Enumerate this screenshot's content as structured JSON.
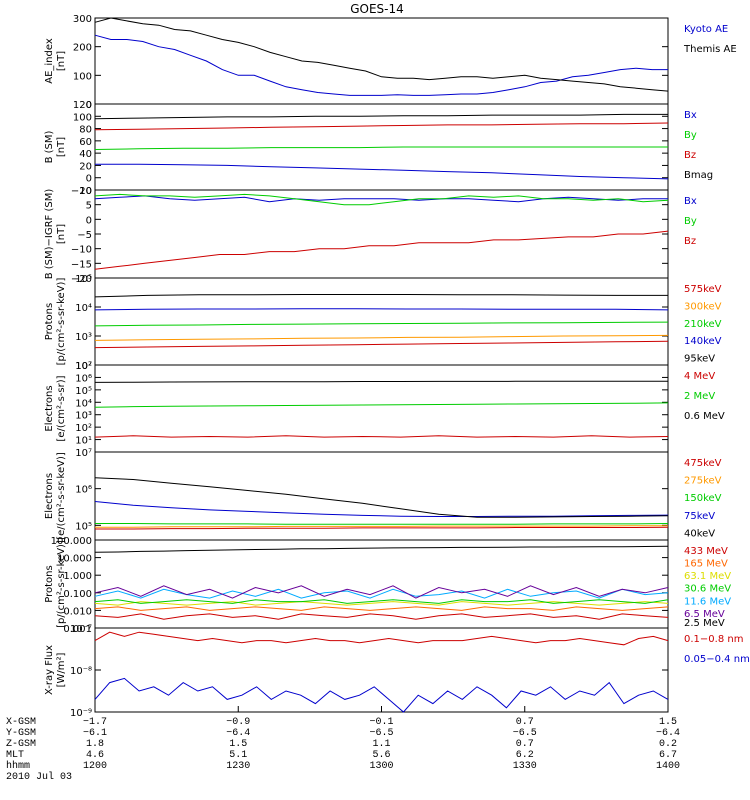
{
  "title": "GOES-14",
  "chart_data": [
    {
      "type": "line",
      "ylabel": "AE_index\n[nT]",
      "ylim": [
        0,
        300
      ],
      "yticks": [
        {
          "v": 0,
          "t": "0"
        },
        {
          "v": 100,
          "t": "100"
        },
        {
          "v": 200,
          "t": "200"
        },
        {
          "v": 300,
          "t": "300"
        }
      ],
      "series": [
        {
          "name": "Kyoto AE",
          "color": "#0000cc",
          "values": [
            240,
            225,
            225,
            218,
            200,
            190,
            170,
            150,
            120,
            100,
            100,
            80,
            60,
            50,
            40,
            35,
            30,
            30,
            30,
            32,
            30,
            30,
            32,
            35,
            35,
            40,
            50,
            60,
            75,
            80,
            95,
            100,
            110,
            120,
            125,
            120,
            120
          ]
        },
        {
          "name": "Themis AE",
          "color": "#000000",
          "values": [
            285,
            300,
            290,
            280,
            275,
            260,
            255,
            240,
            225,
            215,
            200,
            180,
            165,
            150,
            145,
            135,
            125,
            115,
            95,
            90,
            90,
            85,
            90,
            95,
            95,
            90,
            95,
            100,
            90,
            85,
            80,
            75,
            70,
            60,
            55,
            50,
            45
          ]
        }
      ]
    },
    {
      "type": "line",
      "ylabel": "B (SM)\n[nT]",
      "ylim": [
        -20,
        120
      ],
      "yticks": [
        {
          "v": -20,
          "t": "−20"
        },
        {
          "v": 0,
          "t": "0"
        },
        {
          "v": 20,
          "t": "20"
        },
        {
          "v": 40,
          "t": "40"
        },
        {
          "v": 60,
          "t": "60"
        },
        {
          "v": 80,
          "t": "80"
        },
        {
          "v": 100,
          "t": "100"
        },
        {
          "v": 120,
          "t": "120"
        }
      ],
      "series": [
        {
          "name": "Bx",
          "color": "#0000cc",
          "values": [
            22,
            22,
            21,
            20,
            18,
            16,
            14,
            12,
            10,
            8,
            5,
            2,
            0,
            -2
          ]
        },
        {
          "name": "By",
          "color": "#00cc00",
          "values": [
            46,
            47,
            48,
            48,
            49,
            49,
            49,
            50,
            50,
            50,
            50,
            50,
            50,
            50
          ]
        },
        {
          "name": "Bz",
          "color": "#cc0000",
          "values": [
            78,
            79,
            80,
            81,
            82,
            83,
            84,
            85,
            86,
            86,
            87,
            88,
            88,
            89
          ]
        },
        {
          "name": "Bmag",
          "color": "#000000",
          "values": [
            96,
            97,
            98,
            99,
            99,
            100,
            100,
            101,
            101,
            102,
            102,
            102,
            103,
            103
          ]
        }
      ]
    },
    {
      "type": "line",
      "ylabel": "B (SM)−IGRF (SM)\n[nT]",
      "ylim": [
        -20,
        10
      ],
      "yticks": [
        {
          "v": -20,
          "t": "−20"
        },
        {
          "v": -15,
          "t": "−15"
        },
        {
          "v": -10,
          "t": "−10"
        },
        {
          "v": -5,
          "t": "−5"
        },
        {
          "v": 0,
          "t": "0"
        },
        {
          "v": 5,
          "t": "5"
        },
        {
          "v": 10,
          "t": "10"
        }
      ],
      "series": [
        {
          "name": "Bx",
          "color": "#0000cc",
          "values": [
            7,
            7.5,
            8,
            7,
            6.5,
            7,
            7.5,
            6,
            7,
            6.5,
            7,
            7,
            7,
            6.5,
            7,
            7,
            6.5,
            6,
            7,
            7.5,
            7,
            6.5,
            7,
            7
          ]
        },
        {
          "name": "By",
          "color": "#00cc00",
          "values": [
            8,
            8.5,
            8,
            8,
            7.5,
            8,
            8.5,
            8,
            7,
            6,
            5,
            5,
            6,
            7,
            7,
            8,
            7.5,
            8,
            7,
            7,
            6.5,
            7,
            6,
            6.5
          ]
        },
        {
          "name": "Bz",
          "color": "#cc0000",
          "values": [
            -17,
            -16,
            -15,
            -14,
            -13,
            -12,
            -12,
            -11,
            -11,
            -10,
            -10,
            -9,
            -9,
            -8,
            -8,
            -8,
            -7,
            -7,
            -6.5,
            -6,
            -6,
            -5,
            -5,
            -4
          ]
        }
      ]
    },
    {
      "type": "line",
      "ylabel": "Protons\n[p/(cm²-s-sr-keV)]",
      "ylim_log": [
        2,
        5
      ],
      "yticks": [
        {
          "v": 2,
          "t": "10²"
        },
        {
          "v": 3,
          "t": "10³"
        },
        {
          "v": 4,
          "t": "10⁴"
        },
        {
          "v": 5,
          "t": "10⁵"
        }
      ],
      "series": [
        {
          "name": "575keV",
          "color": "#cc0000",
          "values": [
            2.6,
            2.62,
            2.64,
            2.66,
            2.68,
            2.7,
            2.72,
            2.74,
            2.76,
            2.78,
            2.8,
            2.82
          ]
        },
        {
          "name": "300keV",
          "color": "#ff9900",
          "values": [
            2.85,
            2.87,
            2.89,
            2.9,
            2.92,
            2.93,
            2.95,
            2.96,
            2.98,
            3.0,
            3.01,
            3.02
          ]
        },
        {
          "name": "210keV",
          "color": "#00cc00",
          "values": [
            3.35,
            3.37,
            3.38,
            3.4,
            3.41,
            3.42,
            3.43,
            3.44,
            3.45,
            3.46,
            3.47,
            3.48
          ]
        },
        {
          "name": "140keV",
          "color": "#0000cc",
          "values": [
            3.9,
            3.92,
            3.93,
            3.93,
            3.94,
            3.94,
            3.93,
            3.93,
            3.92,
            3.92,
            3.92,
            3.9
          ]
        },
        {
          "name": "95keV",
          "color": "#000000",
          "values": [
            4.35,
            4.4,
            4.42,
            4.42,
            4.43,
            4.43,
            4.43,
            4.42,
            4.42,
            4.41,
            4.4,
            4.4
          ]
        }
      ]
    },
    {
      "type": "line",
      "ylabel": "Electrons\n[e/(cm²-s-sr)]",
      "ylim_log": [
        0,
        7
      ],
      "yticks": [
        {
          "v": 1,
          "t": "10¹"
        },
        {
          "v": 2,
          "t": "10²"
        },
        {
          "v": 3,
          "t": "10³"
        },
        {
          "v": 4,
          "t": "10⁴"
        },
        {
          "v": 5,
          "t": "10⁵"
        },
        {
          "v": 6,
          "t": "10⁶"
        },
        {
          "v": 7,
          "t": "10⁷"
        }
      ],
      "series": [
        {
          "name": "4 MeV",
          "color": "#cc0000",
          "values": [
            1.2,
            1.3,
            1.2,
            1.25,
            1.2,
            1.3,
            1.2,
            1.25,
            1.2,
            1.3,
            1.2,
            1.25,
            1.2,
            1.3,
            1.2,
            1.25
          ]
        },
        {
          "name": "2 MeV",
          "color": "#00cc00",
          "values": [
            3.6,
            3.65,
            3.68,
            3.7,
            3.72,
            3.74,
            3.76,
            3.78,
            3.8,
            3.82,
            3.84,
            3.86,
            3.88,
            3.9,
            3.92,
            3.95
          ]
        },
        {
          "name": "0.6 MeV",
          "color": "#000000",
          "values": [
            5.6,
            5.62,
            5.63,
            5.64,
            5.65,
            5.66,
            5.66,
            5.67,
            5.67,
            5.68,
            5.68,
            5.69,
            5.69,
            5.7,
            5.7,
            5.7
          ]
        }
      ]
    },
    {
      "type": "line",
      "ylabel": "Electrons\n[e/(cm²-s-sr-keV)]",
      "ylim_log": [
        4.6,
        7
      ],
      "yticks": [
        {
          "v": 5,
          "t": "10⁵"
        },
        {
          "v": 6,
          "t": "10⁶"
        },
        {
          "v": 7,
          "t": "10⁷"
        }
      ],
      "series": [
        {
          "name": "475keV",
          "color": "#cc0000",
          "values": [
            4.9,
            4.9,
            4.91,
            4.91,
            4.92,
            4.92,
            4.92,
            4.93,
            4.93,
            4.93,
            4.93,
            4.94,
            4.94,
            4.94,
            4.94,
            4.95
          ]
        },
        {
          "name": "275keV",
          "color": "#ff9900",
          "values": [
            4.95,
            4.95,
            4.96,
            4.96,
            4.96,
            4.97,
            4.97,
            4.97,
            4.97,
            4.98,
            4.98,
            4.98,
            4.98,
            4.98,
            4.99,
            4.99
          ]
        },
        {
          "name": "150keV",
          "color": "#00cc00",
          "values": [
            5.05,
            5.05,
            5.04,
            5.04,
            5.04,
            5.03,
            5.03,
            5.03,
            5.03,
            5.03,
            5.03,
            5.03,
            5.04,
            5.04,
            5.04,
            5.05
          ]
        },
        {
          "name": "75keV",
          "color": "#0000cc",
          "values": [
            5.65,
            5.55,
            5.48,
            5.42,
            5.38,
            5.34,
            5.3,
            5.27,
            5.25,
            5.24,
            5.24,
            5.25,
            5.25,
            5.26,
            5.27,
            5.28
          ]
        },
        {
          "name": "40keV",
          "color": "#000000",
          "values": [
            6.3,
            6.25,
            6.15,
            6.05,
            5.95,
            5.85,
            5.72,
            5.6,
            5.45,
            5.3,
            5.22,
            5.22,
            5.23,
            5.24,
            5.25,
            5.26
          ]
        }
      ]
    },
    {
      "type": "line",
      "ylabel": "Protons\n[p/(cm²-s-sr-keV)]",
      "ylim_log": [
        -3,
        2
      ],
      "yticks": [
        {
          "v": -3,
          "t": "0.001"
        },
        {
          "v": -2,
          "t": "0.010"
        },
        {
          "v": -1,
          "t": "0.100"
        },
        {
          "v": 0,
          "t": "1.000"
        },
        {
          "v": 1,
          "t": "10.000"
        },
        {
          "v": 2,
          "t": "100.000"
        }
      ],
      "series": [
        {
          "name": "433 MeV",
          "color": "#cc0000",
          "values": [
            -2.3,
            -2.4,
            -2.2,
            -2.5,
            -2.3,
            -2.2,
            -2.4,
            -2.3,
            -2.5,
            -2.2,
            -2.3,
            -2.4,
            -2.2,
            -2.3,
            -2.5,
            -2.3,
            -2.2,
            -2.4,
            -2.3,
            -2.2,
            -2.4,
            -2.3,
            -2.5,
            -2.2,
            -2.3,
            -2.4
          ]
        },
        {
          "name": "165 MeV",
          "color": "#ff6600",
          "values": [
            -1.9,
            -1.8,
            -2.0,
            -1.9,
            -1.8,
            -2.0,
            -1.9,
            -1.8,
            -1.9,
            -2.0,
            -1.8,
            -1.9,
            -2.0,
            -1.9,
            -1.8,
            -1.9,
            -2.0,
            -1.8,
            -1.9,
            -1.9,
            -2.0,
            -1.8,
            -1.9,
            -2.0,
            -1.9,
            -1.8
          ]
        },
        {
          "name": "63.1 MeV",
          "color": "#dddd00",
          "values": [
            -1.6,
            -1.7,
            -1.5,
            -1.6,
            -1.7,
            -1.6,
            -1.5,
            -1.7,
            -1.6,
            -1.5,
            -1.6,
            -1.7,
            -1.6,
            -1.5,
            -1.6,
            -1.7,
            -1.5,
            -1.6,
            -1.7,
            -1.6,
            -1.5,
            -1.6,
            -1.7,
            -1.6,
            -1.5,
            -1.6
          ]
        },
        {
          "name": "30.6 MeV",
          "color": "#00cc00",
          "values": [
            -1.5,
            -1.4,
            -1.6,
            -1.5,
            -1.4,
            -1.5,
            -1.6,
            -1.4,
            -1.5,
            -1.5,
            -1.4,
            -1.6,
            -1.5,
            -1.4,
            -1.5,
            -1.6,
            -1.4,
            -1.5,
            -1.5,
            -1.4,
            -1.6,
            -1.5,
            -1.4,
            -1.5,
            -1.6,
            -1.4
          ]
        },
        {
          "name": "11.6 MeV",
          "color": "#00aaff",
          "values": [
            -1.2,
            -0.9,
            -1.3,
            -0.8,
            -1.1,
            -1.3,
            -0.9,
            -1.2,
            -0.8,
            -1.3,
            -1.0,
            -0.9,
            -1.3,
            -0.8,
            -1.2,
            -1.1,
            -0.9,
            -1.3,
            -0.8,
            -1.2,
            -1.0,
            -0.9,
            -1.3,
            -0.8,
            -1.1,
            -1.0
          ]
        },
        {
          "name": "6.5 MeV",
          "color": "#660099",
          "values": [
            -1.0,
            -0.7,
            -1.2,
            -0.6,
            -1.1,
            -0.8,
            -1.3,
            -0.7,
            -1.0,
            -0.6,
            -1.2,
            -0.8,
            -1.1,
            -0.6,
            -1.3,
            -0.7,
            -1.0,
            -0.8,
            -1.2,
            -0.6,
            -1.1,
            -0.7,
            -1.2,
            -0.8,
            -1.0,
            -0.7
          ]
        },
        {
          "name": "2.5 MeV",
          "color": "#000000",
          "values": [
            1.3,
            1.32,
            1.35,
            1.37,
            1.4,
            1.42,
            1.44,
            1.46,
            1.48,
            1.5,
            1.5,
            1.52,
            1.54,
            1.55,
            1.56,
            1.57,
            1.58,
            1.58,
            1.59,
            1.6,
            1.6,
            1.61,
            1.62,
            1.62,
            1.63,
            1.64
          ]
        }
      ]
    },
    {
      "type": "line",
      "ylabel": "X-ray Flux\n[W/m²]",
      "ylim_log": [
        -9,
        -7
      ],
      "yticks": [
        {
          "v": -9,
          "t": "10⁻⁹"
        },
        {
          "v": -8,
          "t": "10⁻⁸"
        },
        {
          "v": -7,
          "t": "10⁻⁷"
        }
      ],
      "series": [
        {
          "name": "0.1−0.8 nm",
          "color": "#cc0000",
          "values": [
            -7.3,
            -7.1,
            -7.2,
            -7.1,
            -7.15,
            -7.2,
            -7.25,
            -7.3,
            -7.25,
            -7.3,
            -7.35,
            -7.3,
            -7.3,
            -7.35,
            -7.3,
            -7.25,
            -7.3,
            -7.3,
            -7.35,
            -7.3,
            -7.25,
            -7.3,
            -7.35,
            -7.3,
            -7.3,
            -7.3,
            -7.25,
            -7.2,
            -7.25,
            -7.3,
            -7.35,
            -7.3,
            -7.3,
            -7.25,
            -7.3,
            -7.35,
            -7.4,
            -7.25,
            -7.2,
            -7.3
          ]
        },
        {
          "name": "0.05−0.4 nm",
          "color": "#0000cc",
          "values": [
            -8.7,
            -8.3,
            -8.2,
            -8.5,
            -8.4,
            -8.6,
            -8.3,
            -8.5,
            -8.4,
            -8.7,
            -8.6,
            -8.4,
            -8.7,
            -8.5,
            -8.6,
            -8.8,
            -8.5,
            -8.7,
            -8.6,
            -8.4,
            -8.7,
            -9.0,
            -8.6,
            -8.8,
            -8.5,
            -8.7,
            -8.4,
            -8.6,
            -8.9,
            -8.5,
            -8.6,
            -8.4,
            -8.7,
            -8.5,
            -8.6,
            -8.3,
            -8.8,
            -8.6,
            -8.5,
            -8.7
          ]
        }
      ]
    }
  ],
  "x_axis": {
    "ticks": [
      "1200",
      "1230",
      "1300",
      "1330",
      "1400"
    ],
    "rows": [
      {
        "label": "X-GSM",
        "values": [
          "−1.7",
          "−0.9",
          "−0.1",
          "0.7",
          "1.5"
        ]
      },
      {
        "label": "Y-GSM",
        "values": [
          "−6.1",
          "−6.4",
          "−6.5",
          "−6.5",
          "−6.4"
        ]
      },
      {
        "label": "Z-GSM",
        "values": [
          "1.8",
          "1.5",
          "1.1",
          "0.7",
          "0.2"
        ]
      },
      {
        "label": "MLT",
        "values": [
          "4.6",
          "5.1",
          "5.6",
          "6.2",
          "6.7"
        ]
      },
      {
        "label": "hhmm",
        "values": [
          "1200",
          "1230",
          "1300",
          "1330",
          "1400"
        ]
      }
    ],
    "date": "2010 Jul 03"
  }
}
